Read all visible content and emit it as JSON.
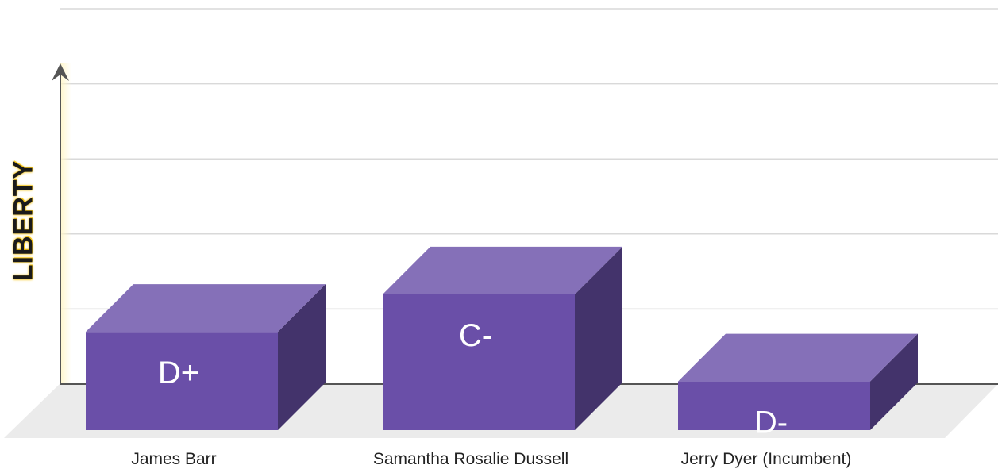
{
  "chart_data": {
    "type": "bar",
    "ylabel": "LIBERTY",
    "xlabel": "",
    "categories": [
      "James Barr",
      "Samantha Rosalie Dussell",
      "Jerry Dyer (Incumbent)"
    ],
    "values": [
      1.33,
      1.83,
      0.67
    ],
    "value_labels": [
      "D+",
      "C-",
      "D-"
    ],
    "ylim": [
      0,
      5
    ],
    "grid": true,
    "colors": {
      "bar_front": "#6a4fa8",
      "bar_top": "#8570b8",
      "bar_side": "#43336b",
      "floor": "#ebebeb",
      "grid": "#d9d9d9",
      "axis": "#555555"
    }
  }
}
